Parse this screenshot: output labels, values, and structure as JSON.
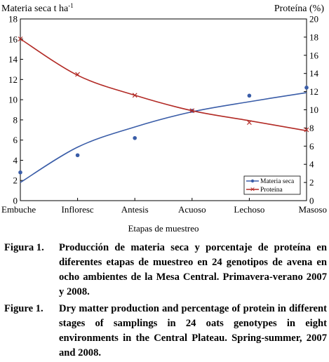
{
  "chart_data": {
    "type": "line",
    "title": "",
    "xlabel": "Etapas de muestreo",
    "ylabel_left": "Materia seca t ha",
    "ylabel_left_sup": "-1",
    "ylabel_right": "Proteína (%)",
    "categories": [
      "Embuche",
      "Infloresc",
      "Antesis",
      "Acuoso",
      "Lechoso",
      "Masoso"
    ],
    "y_left": {
      "min": 0,
      "max": 18,
      "ticks": [
        0,
        2,
        4,
        6,
        8,
        10,
        12,
        14,
        16,
        18
      ]
    },
    "y_right": {
      "min": 0,
      "max": 20,
      "ticks": [
        0,
        2,
        4,
        6,
        8,
        10,
        12,
        14,
        16,
        18,
        20
      ]
    },
    "grid": false,
    "legend_position": "bottom-right",
    "series": [
      {
        "name": "Materia seca",
        "axis": "left",
        "color": "#3a5da8",
        "marker": "dot",
        "points": [
          2.8,
          4.5,
          6.2,
          8.9,
          10.4,
          11.2
        ],
        "fit_curve": [
          1.8,
          5.3,
          7.3,
          8.8,
          9.8,
          10.7
        ]
      },
      {
        "name": "Proteína",
        "axis": "right",
        "color": "#b22a25",
        "marker": "cross",
        "points": [
          17.8,
          13.9,
          11.6,
          9.9,
          8.6,
          7.8
        ],
        "fit_curve": [
          17.8,
          13.8,
          11.6,
          9.9,
          8.8,
          7.7
        ]
      }
    ]
  },
  "captions": {
    "es_label": "Figura 1.",
    "es_text": "Producción de materia seca y porcentaje de proteína en diferentes etapas de muestreo en 24 genotipos de avena en ocho ambientes de la Mesa Central. Primavera-verano 2007 y 2008.",
    "en_label": "Figure 1.",
    "en_text": "Dry matter production and percentage of protein in different stages of samplings in 24 oats genotypes in eight environments in the Central Plateau. Spring-summer, 2007 and 2008."
  }
}
